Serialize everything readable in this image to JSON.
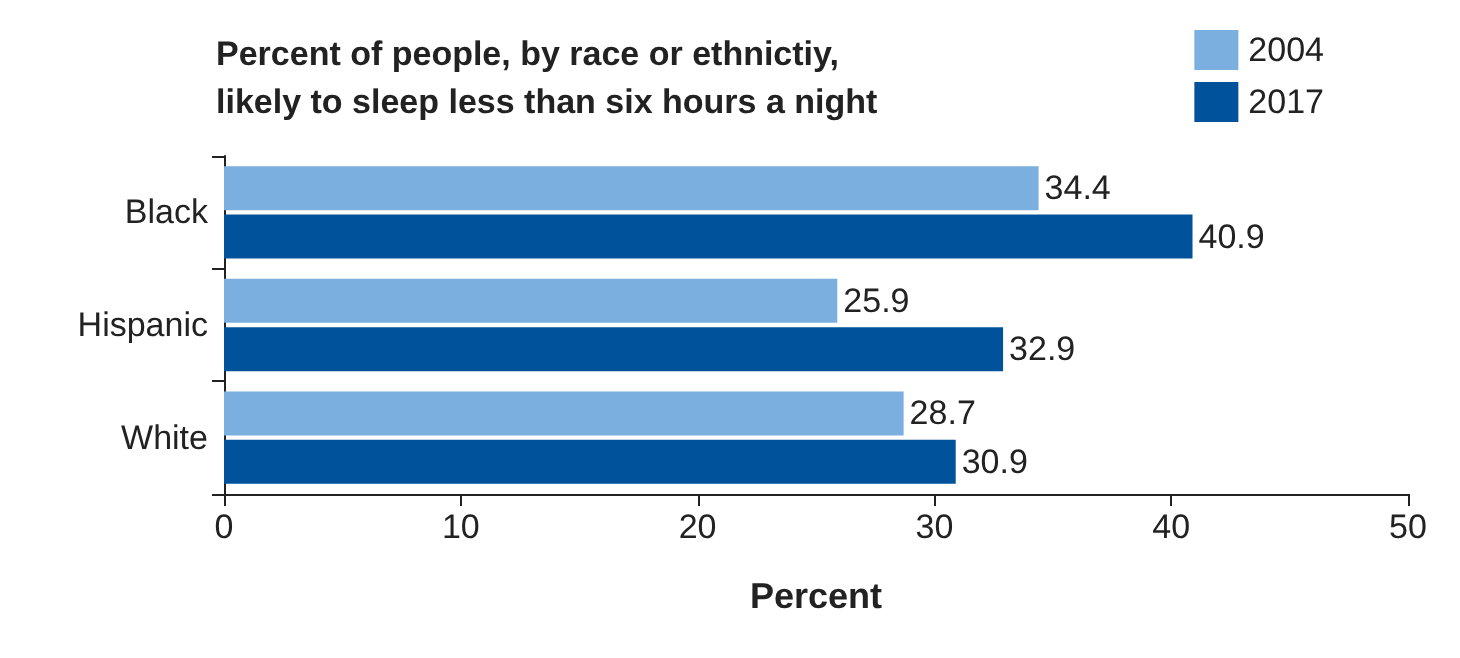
{
  "chart_data": {
    "type": "bar",
    "orientation": "horizontal",
    "title": "Percent of people, by race or ethnictiy,\nlikely to sleep less than six hours a night",
    "xlabel": "Percent",
    "categories": [
      "Black",
      "Hispanic",
      "White"
    ],
    "series": [
      {
        "name": "2004",
        "color": "#7aafe0",
        "values": [
          34.4,
          25.9,
          28.7
        ]
      },
      {
        "name": "2017",
        "color": "#00529b",
        "values": [
          40.9,
          32.9,
          30.9
        ]
      }
    ],
    "xlim": [
      0,
      50
    ],
    "xticks": [
      0,
      10,
      20,
      30,
      40,
      50
    ],
    "data_labels": true,
    "legend": "top right",
    "grid": false
  }
}
